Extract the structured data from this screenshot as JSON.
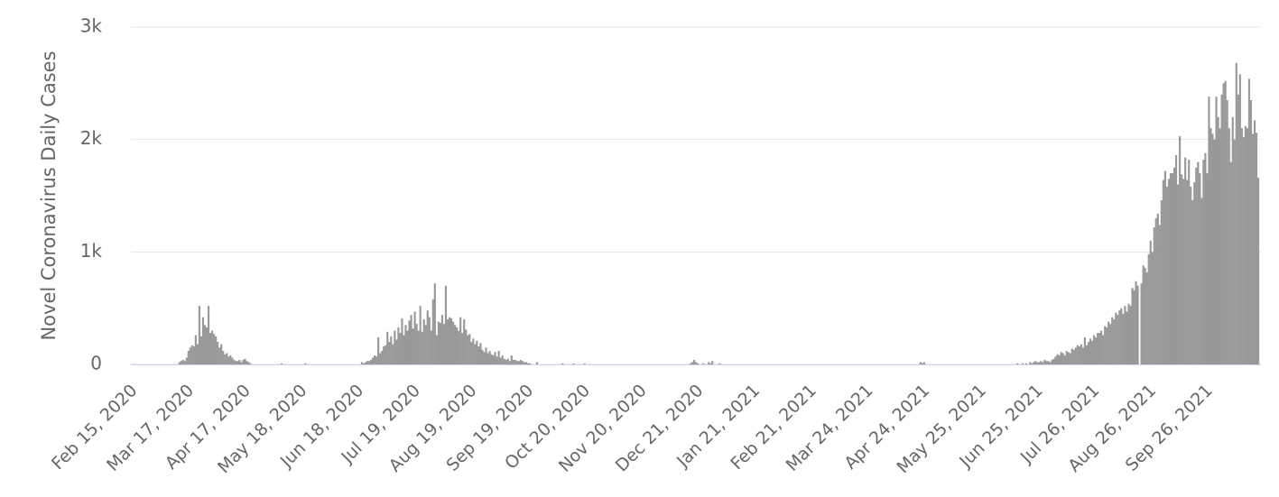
{
  "chart_data": {
    "type": "bar",
    "y_label": "Novel Coronavirus Daily Cases",
    "color": "#999999",
    "grid": true,
    "ylim": [
      0,
      3000
    ],
    "yticks": [
      0,
      {
        "value": 1000,
        "label": "1k"
      },
      {
        "value": 2000,
        "label": "2k"
      },
      {
        "value": 3000,
        "label": "3k"
      }
    ],
    "categories": [
      "Feb 15, 2020",
      null,
      null,
      null,
      null,
      null,
      null,
      null,
      null,
      null,
      null,
      null,
      null,
      null,
      null,
      null,
      null,
      null,
      null,
      null,
      null,
      null,
      null,
      null,
      null,
      null,
      null,
      null,
      null,
      null,
      null,
      "Mar 17, 2020",
      null,
      null,
      null,
      null,
      null,
      null,
      null,
      null,
      null,
      null,
      null,
      null,
      null,
      null,
      null,
      null,
      null,
      null,
      null,
      null,
      null,
      null,
      null,
      null,
      null,
      null,
      null,
      null,
      null,
      null,
      "Apr 17, 2020",
      null,
      null,
      null,
      null,
      null,
      null,
      null,
      null,
      null,
      null,
      null,
      null,
      null,
      null,
      null,
      null,
      null,
      null,
      null,
      null,
      null,
      null,
      null,
      null,
      null,
      null,
      null,
      null,
      null,
      null,
      "May 18, 2020",
      null,
      null,
      null,
      null,
      null,
      null,
      null,
      null,
      null,
      null,
      null,
      null,
      null,
      null,
      null,
      null,
      null,
      null,
      null,
      null,
      null,
      null,
      null,
      null,
      null,
      null,
      null,
      null,
      null,
      null,
      "Jun 18, 2020",
      null,
      null,
      null,
      null,
      null,
      null,
      null,
      null,
      null,
      null,
      null,
      null,
      null,
      null,
      null,
      null,
      null,
      null,
      null,
      null,
      null,
      null,
      null,
      null,
      null,
      null,
      null,
      null,
      null,
      null,
      "Jul 19, 2020",
      null,
      null,
      null,
      null,
      null,
      null,
      null,
      null,
      null,
      null,
      null,
      null,
      null,
      null,
      null,
      null,
      null,
      null,
      null,
      null,
      null,
      null,
      null,
      null,
      null,
      null,
      null,
      null,
      null,
      null,
      "Aug 19, 2020",
      null,
      null,
      null,
      null,
      null,
      null,
      null,
      null,
      null,
      null,
      null,
      null,
      null,
      null,
      null,
      null,
      null,
      null,
      null,
      null,
      null,
      null,
      null,
      null,
      null,
      null,
      null,
      null,
      null,
      null,
      "Sep 19, 2020",
      null,
      null,
      null,
      null,
      null,
      null,
      null,
      null,
      null,
      null,
      null,
      null,
      null,
      null,
      null,
      null,
      null,
      null,
      null,
      null,
      null,
      null,
      null,
      null,
      null,
      null,
      null,
      null,
      null,
      null,
      "Oct 20, 2020",
      null,
      null,
      null,
      null,
      null,
      null,
      null,
      null,
      null,
      null,
      null,
      null,
      null,
      null,
      null,
      null,
      null,
      null,
      null,
      null,
      null,
      null,
      null,
      null,
      null,
      null,
      null,
      null,
      null,
      null,
      "Nov 20, 2020",
      null,
      null,
      null,
      null,
      null,
      null,
      null,
      null,
      null,
      null,
      null,
      null,
      null,
      null,
      null,
      null,
      null,
      null,
      null,
      null,
      null,
      null,
      null,
      null,
      null,
      null,
      null,
      null,
      null,
      null,
      "Dec 21, 2020",
      null,
      null,
      null,
      null,
      null,
      null,
      null,
      null,
      null,
      null,
      null,
      null,
      null,
      null,
      null,
      null,
      null,
      null,
      null,
      null,
      null,
      null,
      null,
      null,
      null,
      null,
      null,
      null,
      null,
      null,
      "Jan 21, 2021",
      null,
      null,
      null,
      null,
      null,
      null,
      null,
      null,
      null,
      null,
      null,
      null,
      null,
      null,
      null,
      null,
      null,
      null,
      null,
      null,
      null,
      null,
      null,
      null,
      null,
      null,
      null,
      null,
      null,
      null,
      "Feb 21, 2021",
      null,
      null,
      null,
      null,
      null,
      null,
      null,
      null,
      null,
      null,
      null,
      null,
      null,
      null,
      null,
      null,
      null,
      null,
      null,
      null,
      null,
      null,
      null,
      null,
      null,
      null,
      null,
      null,
      null,
      null,
      "Mar 24, 2021",
      null,
      null,
      null,
      null,
      null,
      null,
      null,
      null,
      null,
      null,
      null,
      null,
      null,
      null,
      null,
      null,
      null,
      null,
      null,
      null,
      null,
      null,
      null,
      null,
      null,
      null,
      null,
      null,
      null,
      null,
      "Apr 24, 2021",
      null,
      null,
      null,
      null,
      null,
      null,
      null,
      null,
      null,
      null,
      null,
      null,
      null,
      null,
      null,
      null,
      null,
      null,
      null,
      null,
      null,
      null,
      null,
      null,
      null,
      null,
      null,
      null,
      null,
      null,
      "May 25, 2021",
      null,
      null,
      null,
      null,
      null,
      null,
      null,
      null,
      null,
      null,
      null,
      null,
      null,
      null,
      null,
      null,
      null,
      null,
      null,
      null,
      null,
      null,
      null,
      null,
      null,
      null,
      null,
      null,
      null,
      null,
      "Jun 25, 2021",
      null,
      null,
      null,
      null,
      null,
      null,
      null,
      null,
      null,
      null,
      null,
      null,
      null,
      null,
      null,
      null,
      null,
      null,
      null,
      null,
      null,
      null,
      null,
      null,
      null,
      null,
      null,
      null,
      null,
      null,
      "Jul 26, 2021",
      null,
      null,
      null,
      null,
      null,
      null,
      null,
      null,
      null,
      null,
      null,
      null,
      null,
      null,
      null,
      null,
      null,
      null,
      null,
      null,
      null,
      null,
      null,
      null,
      null,
      null,
      null,
      null,
      null,
      null,
      "Aug 26, 2021",
      null,
      null,
      null,
      null,
      null,
      null,
      null,
      null,
      null,
      null,
      null,
      null,
      null,
      null,
      null,
      null,
      null,
      null,
      null,
      null,
      null,
      null,
      null,
      null,
      null,
      null,
      null,
      null,
      null,
      null,
      "Sep 26, 2021",
      null,
      null,
      null,
      null,
      null,
      null,
      null,
      null,
      null,
      null,
      null,
      null,
      null,
      null,
      null,
      null,
      null,
      null,
      null,
      null,
      null,
      null,
      null,
      null,
      null,
      null,
      null,
      null
    ],
    "values": [
      0,
      0,
      0,
      0,
      0,
      0,
      0,
      0,
      0,
      0,
      0,
      0,
      0,
      0,
      0,
      0,
      0,
      0,
      0,
      0,
      0,
      0,
      0,
      0,
      0,
      0,
      20,
      30,
      40,
      30,
      60,
      120,
      150,
      170,
      160,
      260,
      180,
      520,
      250,
      420,
      350,
      330,
      520,
      280,
      300,
      270,
      250,
      200,
      150,
      180,
      120,
      90,
      100,
      70,
      80,
      60,
      40,
      30,
      30,
      40,
      20,
      40,
      50,
      30,
      20,
      10,
      0,
      0,
      0,
      0,
      0,
      0,
      0,
      0,
      0,
      0,
      0,
      0,
      0,
      0,
      0,
      0,
      10,
      0,
      0,
      0,
      0,
      0,
      0,
      0,
      0,
      0,
      0,
      0,
      0,
      10,
      0,
      0,
      0,
      0,
      0,
      0,
      0,
      0,
      0,
      0,
      0,
      0,
      0,
      0,
      0,
      0,
      0,
      0,
      0,
      0,
      0,
      0,
      0,
      0,
      0,
      0,
      0,
      0,
      0,
      0,
      20,
      10,
      20,
      30,
      30,
      40,
      60,
      80,
      70,
      240,
      100,
      120,
      160,
      170,
      290,
      200,
      250,
      180,
      300,
      220,
      330,
      280,
      410,
      260,
      350,
      300,
      390,
      440,
      320,
      470,
      360,
      300,
      520,
      290,
      400,
      350,
      480,
      420,
      300,
      580,
      720,
      260,
      380,
      370,
      440,
      360,
      700,
      400,
      420,
      410,
      380,
      350,
      330,
      300,
      420,
      280,
      400,
      310,
      260,
      270,
      200,
      230,
      180,
      210,
      160,
      190,
      130,
      110,
      150,
      100,
      120,
      90,
      80,
      110,
      70,
      120,
      60,
      80,
      50,
      40,
      50,
      30,
      80,
      40,
      40,
      30,
      30,
      40,
      30,
      20,
      20,
      10,
      10,
      0,
      0,
      0,
      20,
      0,
      0,
      0,
      0,
      0,
      0,
      0,
      0,
      0,
      0,
      0,
      0,
      0,
      10,
      0,
      0,
      0,
      0,
      0,
      10,
      0,
      0,
      0,
      0,
      0,
      10,
      0,
      0,
      0,
      0,
      0,
      0,
      0,
      0,
      0,
      0,
      0,
      0,
      0,
      0,
      0,
      0,
      0,
      0,
      0,
      0,
      0,
      0,
      0,
      0,
      0,
      0,
      0,
      0,
      0,
      0,
      0,
      0,
      0,
      0,
      0,
      0,
      0,
      0,
      0,
      0,
      0,
      0,
      0,
      0,
      0,
      0,
      0,
      0,
      0,
      0,
      0,
      0,
      0,
      0,
      0,
      0,
      0,
      10,
      20,
      40,
      20,
      10,
      0,
      0,
      10,
      0,
      0,
      20,
      10,
      30,
      0,
      0,
      0,
      10,
      0,
      0,
      0,
      0,
      0,
      0,
      0,
      0,
      0,
      0,
      0,
      0,
      0,
      0,
      0,
      0,
      0,
      0,
      0,
      0,
      0,
      0,
      0,
      0,
      0,
      0,
      0,
      0,
      0,
      0,
      0,
      0,
      0,
      0,
      0,
      0,
      0,
      0,
      0,
      0,
      0,
      0,
      0,
      0,
      0,
      0,
      0,
      0,
      0,
      0,
      0,
      0,
      0,
      0,
      0,
      0,
      0,
      0,
      0,
      0,
      0,
      0,
      0,
      0,
      0,
      0,
      0,
      0,
      0,
      0,
      0,
      0,
      0,
      0,
      0,
      0,
      0,
      0,
      0,
      0,
      0,
      0,
      0,
      0,
      0,
      0,
      0,
      0,
      0,
      0,
      0,
      0,
      0,
      0,
      0,
      0,
      0,
      0,
      0,
      0,
      0,
      0,
      0,
      0,
      0,
      0,
      0,
      0,
      0,
      20,
      10,
      20,
      0,
      0,
      0,
      0,
      0,
      0,
      0,
      0,
      0,
      0,
      0,
      0,
      0,
      0,
      0,
      0,
      0,
      0,
      0,
      0,
      0,
      0,
      0,
      0,
      0,
      0,
      0,
      0,
      0,
      0,
      0,
      0,
      0,
      0,
      0,
      0,
      0,
      0,
      0,
      0,
      0,
      0,
      0,
      0,
      0,
      0,
      0,
      0,
      0,
      0,
      10,
      0,
      0,
      10,
      0,
      10,
      0,
      20,
      10,
      20,
      30,
      20,
      20,
      30,
      20,
      40,
      30,
      30,
      20,
      40,
      50,
      70,
      90,
      80,
      110,
      100,
      80,
      120,
      110,
      100,
      140,
      130,
      150,
      170,
      160,
      180,
      150,
      240,
      170,
      200,
      230,
      210,
      260,
      240,
      280,
      280,
      300,
      260,
      340,
      330,
      380,
      360,
      420,
      400,
      460,
      440,
      480,
      500,
      450,
      520,
      470,
      540,
      520,
      680,
      660,
      740,
      700,
      0,
      720,
      880,
      860,
      820,
      980,
      1100,
      1000,
      1220,
      1300,
      1340,
      1240,
      1460,
      1640,
      1720,
      1580,
      1650,
      1700,
      1700,
      1750,
      1860,
      1600,
      2030,
      1690,
      1650,
      1840,
      1640,
      1820,
      1580,
      1460,
      1620,
      1750,
      1800,
      1700,
      1480,
      1820,
      1880,
      1700,
      2380,
      2100,
      2050,
      2000,
      2380,
      2200,
      2100,
      2400,
      2500,
      2520,
      2350,
      2100,
      1800,
      2200,
      2000,
      2680,
      2400,
      2580,
      2100,
      2020,
      2120,
      2100,
      2540,
      2350,
      2050,
      2170,
      2060,
      1660
    ]
  }
}
